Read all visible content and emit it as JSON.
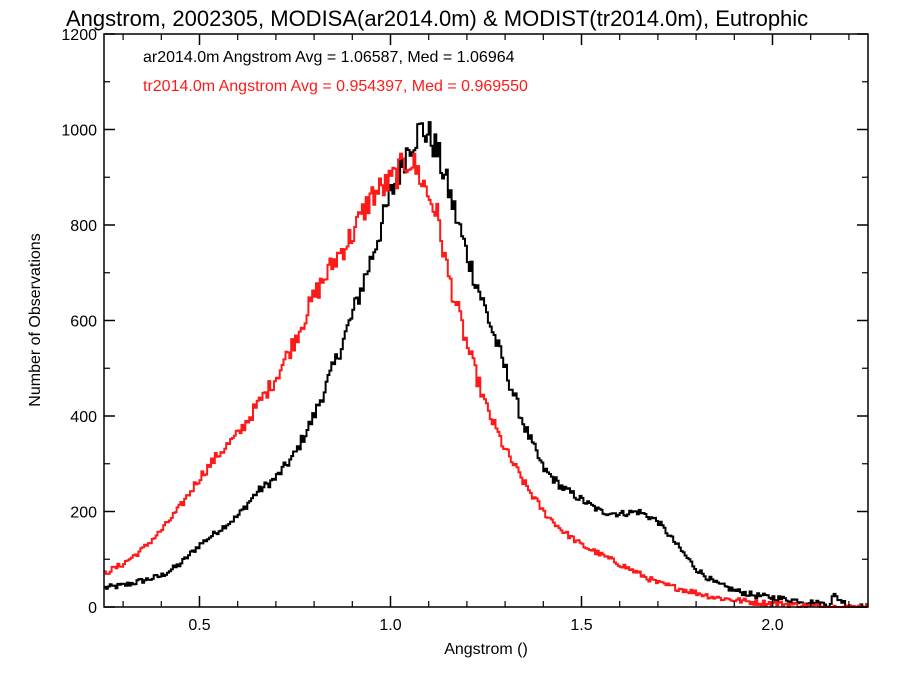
{
  "chart_data": {
    "type": "line",
    "title": "Angstrom, 2002305, MODISA(ar2014.0m) & MODIST(tr2014.0m), Eutrophic",
    "xlabel": "Angstrom ()",
    "ylabel": "Number of Observations",
    "xlim": [
      0.25,
      2.25
    ],
    "ylim": [
      0,
      1200
    ],
    "xticks": [
      0.5,
      1.0,
      1.5,
      2.0
    ],
    "xtick_labels": [
      "0.5",
      "1.0",
      "1.5",
      "2.0"
    ],
    "yticks": [
      0,
      200,
      400,
      600,
      800,
      1000,
      1200
    ],
    "ytick_labels": [
      "0",
      "200",
      "400",
      "600",
      "800",
      "1000",
      "1200"
    ],
    "grid": false,
    "colors": {
      "ar": "#000000",
      "tr": "#ff1a1a"
    },
    "annotations": [
      {
        "text": "ar2014.0m Angstrom Avg = 1.06587, Med = 1.06964",
        "color": "#000000"
      },
      {
        "text": "tr2014.0m Angstrom Avg = 0.954397, Med = 0.969550",
        "color": "#ff1a1a"
      }
    ],
    "series": [
      {
        "key": "ar",
        "color": "#000000",
        "x": [
          0.25,
          0.3,
          0.35,
          0.4,
          0.45,
          0.5,
          0.55,
          0.6,
          0.65,
          0.7,
          0.75,
          0.8,
          0.85,
          0.9,
          0.95,
          1.0,
          1.05,
          1.08,
          1.1,
          1.12,
          1.15,
          1.2,
          1.25,
          1.3,
          1.35,
          1.4,
          1.45,
          1.5,
          1.55,
          1.6,
          1.65,
          1.7,
          1.75,
          1.8,
          1.85,
          1.9,
          1.95,
          2.0,
          2.05,
          2.1,
          2.15,
          2.16,
          2.2,
          2.25
        ],
        "y": [
          40,
          45,
          55,
          65,
          90,
          130,
          160,
          190,
          240,
          270,
          320,
          400,
          500,
          610,
          730,
          860,
          970,
          1000,
          990,
          960,
          880,
          740,
          620,
          500,
          380,
          290,
          250,
          225,
          200,
          195,
          200,
          180,
          130,
          80,
          50,
          35,
          25,
          20,
          15,
          10,
          5,
          25,
          2,
          0
        ]
      },
      {
        "key": "tr",
        "color": "#ff1a1a",
        "x": [
          0.25,
          0.3,
          0.35,
          0.4,
          0.45,
          0.5,
          0.55,
          0.6,
          0.65,
          0.7,
          0.75,
          0.8,
          0.85,
          0.9,
          0.95,
          1.0,
          1.05,
          1.08,
          1.1,
          1.12,
          1.15,
          1.2,
          1.25,
          1.3,
          1.35,
          1.4,
          1.45,
          1.5,
          1.55,
          1.6,
          1.65,
          1.7,
          1.75,
          1.8,
          1.85,
          1.9,
          1.95,
          2.0,
          2.05,
          2.1,
          2.15,
          2.2,
          2.25
        ],
        "y": [
          70,
          90,
          120,
          160,
          210,
          270,
          320,
          360,
          420,
          480,
          560,
          650,
          720,
          780,
          860,
          890,
          940,
          900,
          860,
          830,
          700,
          550,
          420,
          330,
          260,
          200,
          160,
          130,
          110,
          90,
          70,
          50,
          40,
          30,
          20,
          15,
          10,
          8,
          5,
          2,
          0,
          0,
          0
        ]
      }
    ]
  }
}
